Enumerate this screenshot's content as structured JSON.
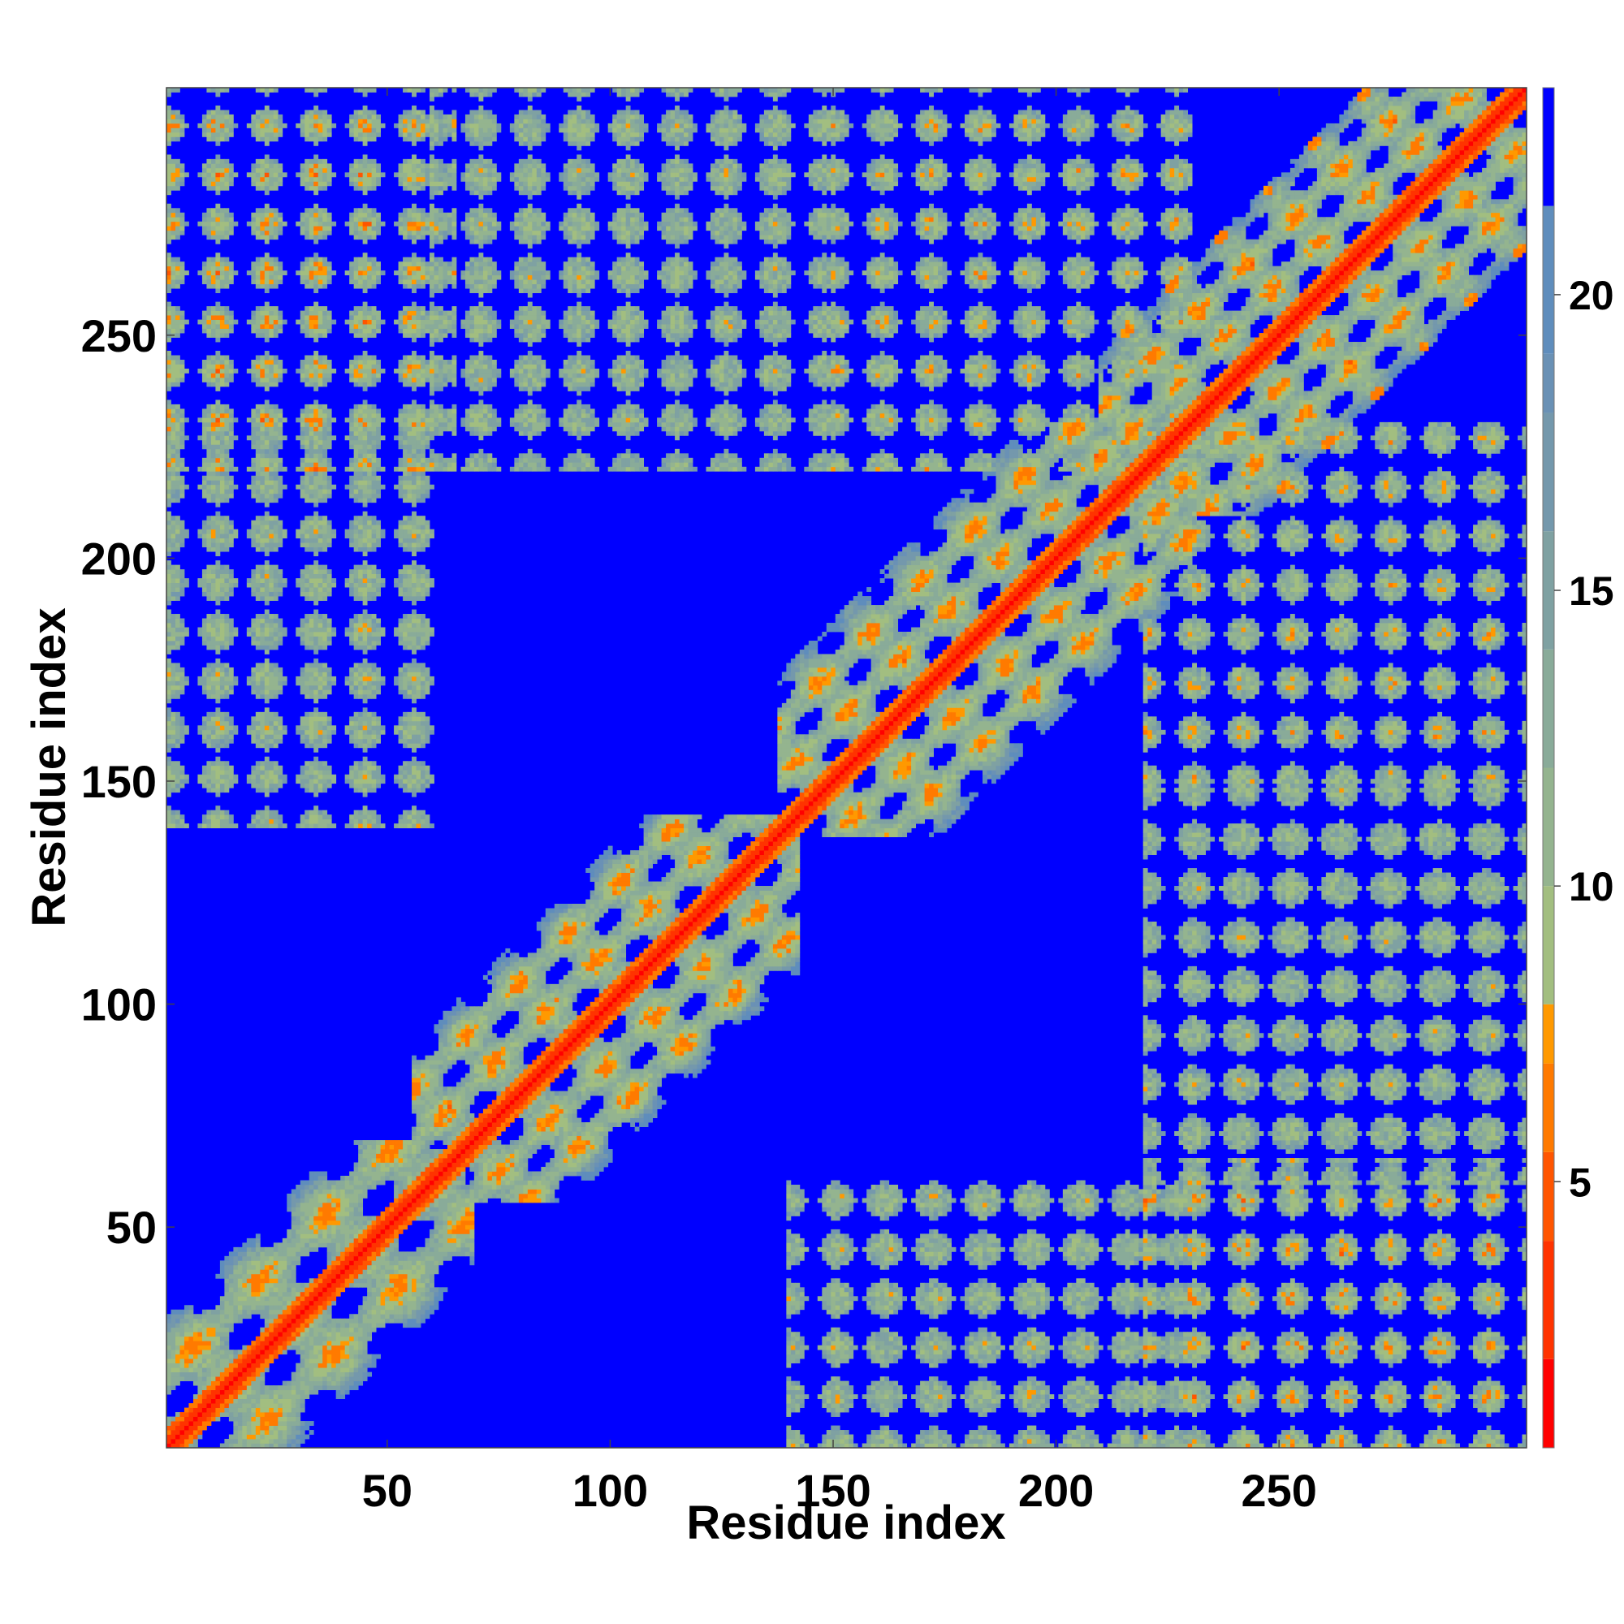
{
  "chart_data": {
    "type": "heatmap",
    "title": "",
    "xlabel": "Residue index",
    "ylabel": "Residue index",
    "n_residues": 305,
    "xlim": [
      1,
      305
    ],
    "ylim": [
      1,
      305
    ],
    "x_ticks": [
      50,
      100,
      150,
      200,
      250
    ],
    "y_ticks": [
      50,
      100,
      150,
      200,
      250
    ],
    "colorbar": {
      "range": [
        0.5,
        23.5
      ],
      "ticks": [
        5,
        10,
        15,
        20
      ],
      "levels": [
        {
          "max": 2,
          "color": "#ff0000"
        },
        {
          "max": 4,
          "color": "#ff3300"
        },
        {
          "max": 5.5,
          "color": "#ff5500"
        },
        {
          "max": 7,
          "color": "#ff7a00"
        },
        {
          "max": 8,
          "color": "#ff9900"
        },
        {
          "max": 10,
          "color": "#a2be80"
        },
        {
          "max": 12,
          "color": "#94b48f"
        },
        {
          "max": 14,
          "color": "#89ab99"
        },
        {
          "max": 16,
          "color": "#7fa1a2"
        },
        {
          "max": 18,
          "color": "#7498ac"
        },
        {
          "max": 19,
          "color": "#6a91b5"
        },
        {
          "max": 21.5,
          "color": "#5f8dbc"
        },
        {
          "max": 23.5,
          "color": "#0000ff"
        }
      ]
    },
    "background_color": "#0000ff",
    "domains": [
      {
        "start": 1,
        "end": 69,
        "period": 29.8,
        "intra_diag_width": 24,
        "inter_strength": 1.0
      },
      {
        "start": 56,
        "end": 142,
        "period": 23,
        "intra_diag_width": 30,
        "inter_strength": 1.0
      },
      {
        "start": 138,
        "end": 230,
        "period": 22.8,
        "intra_diag_width": 31,
        "inter_strength": 1.0
      },
      {
        "start": 210,
        "end": 305,
        "period": 21.2,
        "intra_diag_width": 31,
        "inter_strength": 1.0
      }
    ],
    "off_diagonal_blocks": [
      {
        "x": [
          1,
          65
        ],
        "y": [
          220,
          305
        ],
        "strength": 0.75
      },
      {
        "x": [
          220,
          305
        ],
        "y": [
          1,
          65
        ],
        "strength": 0.75
      },
      {
        "x": [
          1,
          60
        ],
        "y": [
          140,
          215
        ],
        "strength": 0.5
      },
      {
        "x": [
          140,
          215
        ],
        "y": [
          1,
          60
        ],
        "strength": 0.5
      },
      {
        "x": [
          60,
          150
        ],
        "y": [
          220,
          305
        ],
        "strength": 0.45
      },
      {
        "x": [
          220,
          305
        ],
        "y": [
          60,
          150
        ],
        "strength": 0.45
      },
      {
        "x": [
          150,
          230
        ],
        "y": [
          220,
          305
        ],
        "strength": 0.6
      },
      {
        "x": [
          220,
          305
        ],
        "y": [
          150,
          230
        ],
        "strength": 0.6
      },
      {
        "x": [
          150,
          230
        ],
        "y": [
          1,
          60
        ],
        "strength": 0.4
      },
      {
        "x": [
          1,
          60
        ],
        "y": [
          150,
          230
        ],
        "strength": 0.4
      },
      {
        "x": [
          230,
          305
        ],
        "y": [
          60,
          140
        ],
        "strength": 0.45
      },
      {
        "x": [
          60,
          140
        ],
        "y": [
          230,
          305
        ],
        "strength": 0.45
      }
    ]
  }
}
